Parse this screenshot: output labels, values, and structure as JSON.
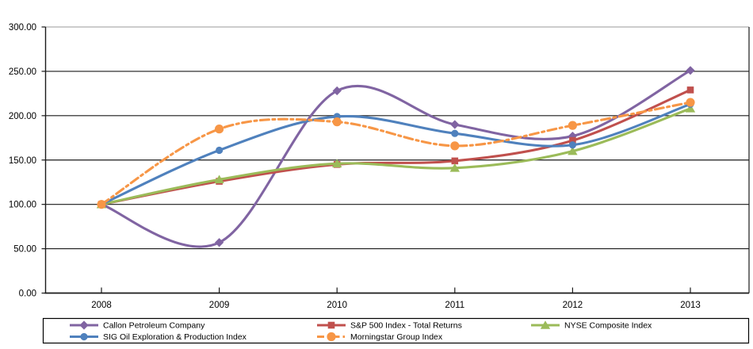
{
  "chart_data": {
    "type": "line",
    "title": "",
    "categories": [
      "2008",
      "2009",
      "2010",
      "2011",
      "2012",
      "2013"
    ],
    "series": [
      {
        "name": "Callon Petroleum Company",
        "color": "#8064A2",
        "marker": "diamond",
        "dash": "solid",
        "values": [
          100,
          57,
          228,
          190,
          177,
          251
        ]
      },
      {
        "name": "S&P 500 Index - Total Returns",
        "color": "#C0504D",
        "marker": "square",
        "dash": "solid",
        "values": [
          100,
          126,
          145,
          149,
          172,
          229
        ]
      },
      {
        "name": "NYSE Composite Index",
        "color": "#9BBB59",
        "marker": "triangle",
        "dash": "solid",
        "values": [
          100,
          128,
          146,
          141,
          160,
          208
        ]
      },
      {
        "name": "SIG Oil Exploration & Production Index",
        "color": "#4F81BD",
        "marker": "circle",
        "dash": "solid",
        "values": [
          100,
          161,
          199,
          180,
          167,
          213
        ]
      },
      {
        "name": "Morningstar Group Index",
        "color": "#F79646",
        "marker": "circle-large",
        "dash": "dashdot",
        "values": [
          100,
          185,
          193,
          166,
          189,
          215
        ]
      }
    ],
    "x_axis": {
      "tick_labels": [
        "2008",
        "2009",
        "2010",
        "2011",
        "2012",
        "2013"
      ]
    },
    "y_axis": {
      "min": 0,
      "max": 300,
      "step": 50,
      "tick_labels": [
        "0.00",
        "50.00",
        "100.00",
        "150.00",
        "200.00",
        "250.00",
        "300.00"
      ]
    },
    "grid": true,
    "smooth_lines": true,
    "legend_position": "bottom",
    "legend_layout": {
      "rows": 2,
      "columns": 3,
      "order": [
        "Callon Petroleum Company",
        "S&P 500 Index - Total Returns",
        "NYSE Composite Index",
        "SIG Oil Exploration & Production Index",
        "Morningstar Group Index"
      ]
    },
    "axis_color": "#1a1a1a",
    "top_gridline_color": "#9a9a9a",
    "background_color": "#ffffff"
  }
}
